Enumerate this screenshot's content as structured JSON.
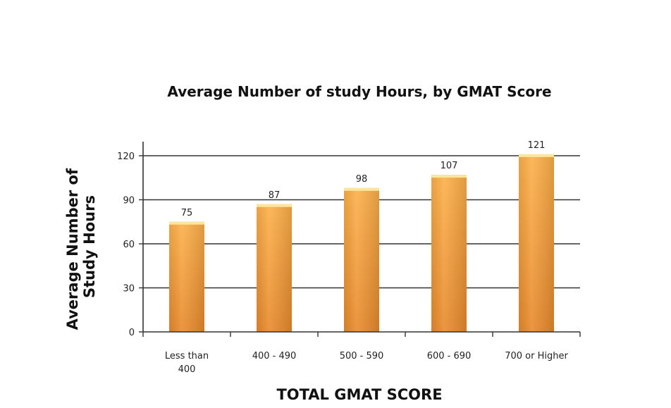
{
  "chart_data": {
    "type": "bar",
    "title": "Average Number of  study Hours, by GMAT Score",
    "xlabel": "TOTAL GMAT SCORE",
    "ylabel_lines": [
      "Average Number of",
      "Study Hours"
    ],
    "categories": [
      [
        "Less than",
        "400"
      ],
      [
        "400 - 490"
      ],
      [
        "500 - 590"
      ],
      [
        "600 - 690"
      ],
      [
        "700 or Higher"
      ]
    ],
    "values": [
      75,
      87,
      98,
      107,
      121
    ],
    "ylim": [
      0,
      120
    ],
    "yticks": [
      0,
      30,
      60,
      90,
      120
    ],
    "grid": true,
    "legend": "none",
    "colors": {
      "bar_top": "#fdb04a",
      "bar_bottom": "#e8892b",
      "bar_cap": "#fde59a",
      "grid": "#333333"
    }
  }
}
